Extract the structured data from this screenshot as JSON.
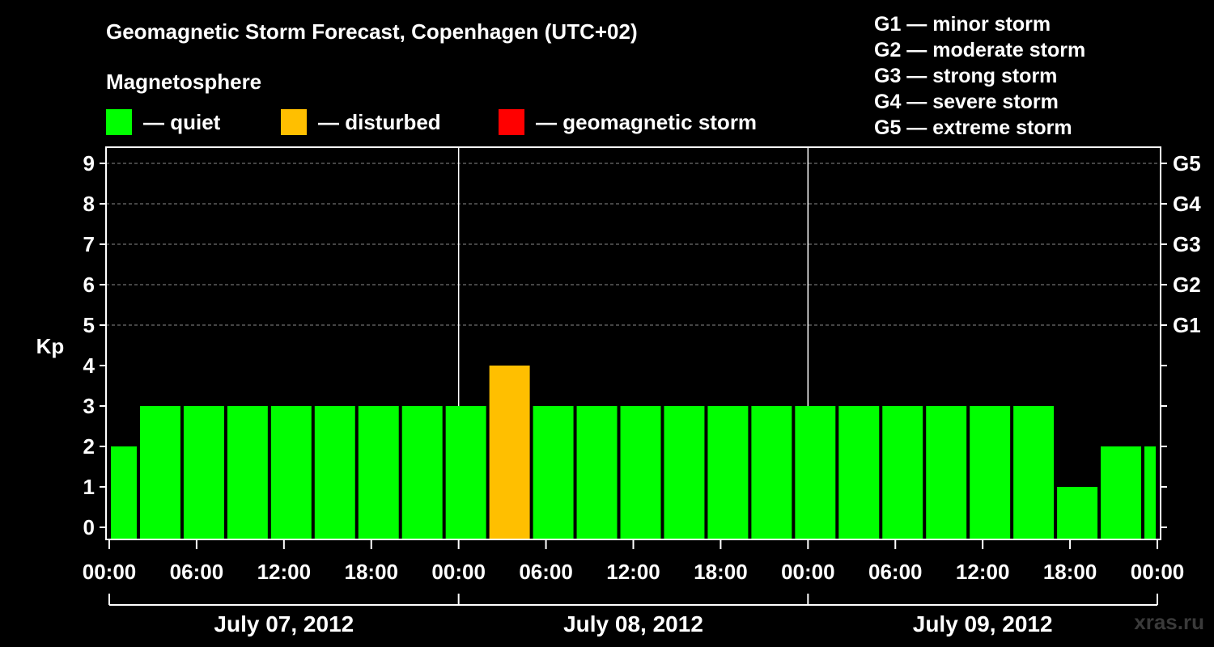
{
  "title": "Geomagnetic Storm Forecast, Copenhagen (UTC+02)",
  "legend": {
    "heading": "Magnetosphere",
    "items": [
      {
        "label": "— quiet",
        "color": "#00ff00"
      },
      {
        "label": "— disturbed",
        "color": "#ffbf00"
      },
      {
        "label": "— geomagnetic storm",
        "color": "#ff0000"
      }
    ]
  },
  "g_levels": [
    "G1 — minor storm",
    "G2 — moderate storm",
    "G3 — strong storm",
    "G4 — severe storm",
    "G5 — extreme storm"
  ],
  "watermark": "xras.ru",
  "chart_data": {
    "type": "bar",
    "ylabel": "Kp",
    "ylim": [
      0,
      9
    ],
    "y_ticks": [
      "0",
      "1",
      "2",
      "3",
      "4",
      "5",
      "6",
      "7",
      "8",
      "9"
    ],
    "right_ticks": [
      {
        "kp": 5,
        "label": "G1"
      },
      {
        "kp": 6,
        "label": "G2"
      },
      {
        "kp": 7,
        "label": "G3"
      },
      {
        "kp": 8,
        "label": "G4"
      },
      {
        "kp": 9,
        "label": "G5"
      }
    ],
    "x_ticks": [
      "00:00",
      "06:00",
      "12:00",
      "18:00",
      "00:00",
      "06:00",
      "12:00",
      "18:00",
      "00:00",
      "06:00",
      "12:00",
      "18:00",
      "00:00"
    ],
    "days": [
      "July 07, 2012",
      "July 08, 2012",
      "July 09, 2012"
    ],
    "x_range_hours": [
      0,
      72
    ],
    "grid": "horizontal dashed",
    "colors": {
      "quiet": "#00ff00",
      "disturbed": "#ffbf00",
      "storm": "#ff0000"
    },
    "bars": [
      {
        "start": 0,
        "end": 2,
        "kp": 2,
        "status": "quiet"
      },
      {
        "start": 2,
        "end": 5,
        "kp": 3,
        "status": "quiet"
      },
      {
        "start": 5,
        "end": 8,
        "kp": 3,
        "status": "quiet"
      },
      {
        "start": 8,
        "end": 11,
        "kp": 3,
        "status": "quiet"
      },
      {
        "start": 11,
        "end": 14,
        "kp": 3,
        "status": "quiet"
      },
      {
        "start": 14,
        "end": 17,
        "kp": 3,
        "status": "quiet"
      },
      {
        "start": 17,
        "end": 20,
        "kp": 3,
        "status": "quiet"
      },
      {
        "start": 20,
        "end": 23,
        "kp": 3,
        "status": "quiet"
      },
      {
        "start": 23,
        "end": 26,
        "kp": 3,
        "status": "quiet"
      },
      {
        "start": 26,
        "end": 29,
        "kp": 4,
        "status": "disturbed"
      },
      {
        "start": 29,
        "end": 32,
        "kp": 3,
        "status": "quiet"
      },
      {
        "start": 32,
        "end": 35,
        "kp": 3,
        "status": "quiet"
      },
      {
        "start": 35,
        "end": 38,
        "kp": 3,
        "status": "quiet"
      },
      {
        "start": 38,
        "end": 41,
        "kp": 3,
        "status": "quiet"
      },
      {
        "start": 41,
        "end": 44,
        "kp": 3,
        "status": "quiet"
      },
      {
        "start": 44,
        "end": 47,
        "kp": 3,
        "status": "quiet"
      },
      {
        "start": 47,
        "end": 50,
        "kp": 3,
        "status": "quiet"
      },
      {
        "start": 50,
        "end": 53,
        "kp": 3,
        "status": "quiet"
      },
      {
        "start": 53,
        "end": 56,
        "kp": 3,
        "status": "quiet"
      },
      {
        "start": 56,
        "end": 59,
        "kp": 3,
        "status": "quiet"
      },
      {
        "start": 59,
        "end": 62,
        "kp": 3,
        "status": "quiet"
      },
      {
        "start": 62,
        "end": 65,
        "kp": 3,
        "status": "quiet"
      },
      {
        "start": 65,
        "end": 68,
        "kp": 1,
        "status": "quiet"
      },
      {
        "start": 68,
        "end": 71,
        "kp": 2,
        "status": "quiet"
      },
      {
        "start": 71,
        "end": 72,
        "kp": 2,
        "status": "quiet"
      }
    ]
  }
}
